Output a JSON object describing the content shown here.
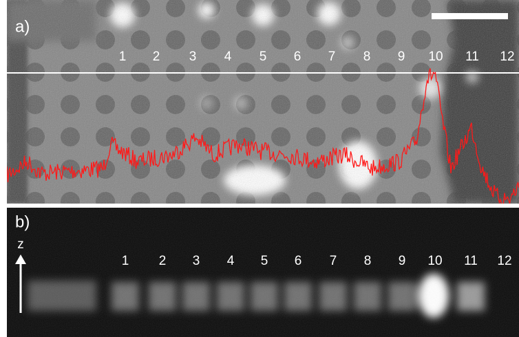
{
  "panel_a": {
    "label": "a)",
    "well_labels": [
      "1",
      "2",
      "3",
      "4",
      "5",
      "6",
      "7",
      "8",
      "9",
      "10",
      "11",
      "12"
    ]
  },
  "panel_b": {
    "label": "b)",
    "axis_label": "z",
    "well_labels": [
      "1",
      "2",
      "3",
      "4",
      "5",
      "6",
      "7",
      "8",
      "9",
      "10",
      "11",
      "12"
    ]
  }
}
